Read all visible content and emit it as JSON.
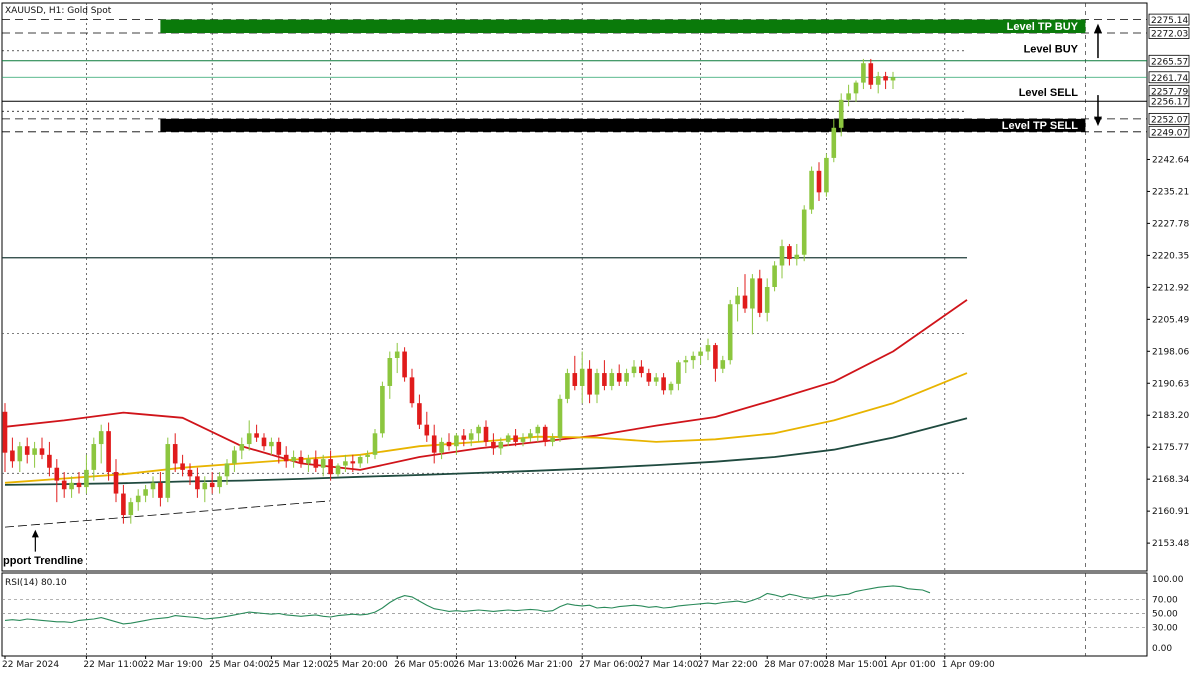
{
  "chart_data": {
    "type": "candlestick",
    "title": "XAUUSD, H1:  Gold Spot",
    "symbol": "XAUUSD",
    "timeframe": "H1",
    "instrument": "Gold Spot",
    "ylim": [
      2147.0,
      2279.0
    ],
    "price_ticks": [
      "2242.64",
      "2235.21",
      "2227.78",
      "2220.35",
      "2212.92",
      "2205.49",
      "2198.06",
      "2190.63",
      "2183.20",
      "2175.77",
      "2168.34",
      "2160.91",
      "2153.48"
    ],
    "time_ticks": [
      {
        "label": "22 Mar 2024",
        "index": 0
      },
      {
        "label": "22 Mar 11:00",
        "index": 11
      },
      {
        "label": "22 Mar 19:00",
        "index": 19
      },
      {
        "label": "25 Mar 04:00",
        "index": 28
      },
      {
        "label": "25 Mar 12:00",
        "index": 36
      },
      {
        "label": "25 Mar 20:00",
        "index": 44
      },
      {
        "label": "26 Mar 05:00",
        "index": 53
      },
      {
        "label": "26 Mar 13:00",
        "index": 61
      },
      {
        "label": "26 Mar 21:00",
        "index": 69
      },
      {
        "label": "27 Mar 06:00",
        "index": 78
      },
      {
        "label": "27 Mar 14:00",
        "index": 86
      },
      {
        "label": "27 Mar 22:00",
        "index": 94
      },
      {
        "label": "28 Mar 07:00",
        "index": 103
      },
      {
        "label": "28 Mar 15:00",
        "index": 111
      },
      {
        "label": "1 Apr 01:00",
        "index": 119
      },
      {
        "label": "1 Apr 09:00",
        "index": 127
      }
    ],
    "grid": true,
    "levels": [
      {
        "label": "Level TP BUY",
        "from": 2272.03,
        "to": 2275.14,
        "color": "#0a7a0a",
        "kind": "zone"
      },
      {
        "label": "Level BUY",
        "price": 2265.57,
        "color": "#000000",
        "kind": "line"
      },
      {
        "label": "Level SELL",
        "price": 2256.17,
        "color": "#000000",
        "kind": "line"
      },
      {
        "label": "Level TP SELL",
        "from": 2249.07,
        "to": 2252.07,
        "color": "#000000",
        "kind": "zone"
      }
    ],
    "price_labels": [
      {
        "text": "2275.14",
        "price": 2275.14,
        "bg": "#ffffff",
        "fg": "#000000"
      },
      {
        "text": "2272.03",
        "price": 2272.03,
        "bg": "#ffffff",
        "fg": "#000000"
      },
      {
        "text": "2265.57",
        "price": 2265.57,
        "bg": "#ffffff",
        "fg": "#000000"
      },
      {
        "text": "2261.74",
        "price": 2261.74,
        "bg": "#ffffff",
        "fg": "#0a8a5a"
      },
      {
        "text": "2257.79",
        "price": 2258.6,
        "bg": "#ffffff",
        "fg": "#000000"
      },
      {
        "text": "2256.17",
        "price": 2256.17,
        "bg": "#ffffff",
        "fg": "#000000"
      },
      {
        "text": "2252.07",
        "price": 2252.07,
        "bg": "#ffffff",
        "fg": "#000000"
      },
      {
        "text": "2249.07",
        "price": 2249.07,
        "bg": "#ffffff",
        "fg": "#000000"
      }
    ],
    "bid_line": 2261.74,
    "annotations": [
      {
        "text": "pport Trendline"
      }
    ],
    "trendline": {
      "x": [
        0,
        44
      ],
      "y": [
        2157.2,
        2163.3
      ]
    },
    "horizontal_lines": [
      {
        "price": 2219.8,
        "style": "solid",
        "color": "#1f3d3a"
      },
      {
        "price": 2202.2,
        "style": "dotted",
        "color": "#555555"
      },
      {
        "price": 2169.7,
        "style": "dotted",
        "color": "#555555"
      }
    ],
    "candles": [
      [
        2184.0,
        2186.0,
        2170.0,
        2174.5
      ],
      [
        2175.0,
        2178.0,
        2171.0,
        2172.5
      ],
      [
        2172.5,
        2177.0,
        2170.0,
        2176.0
      ],
      [
        2176.0,
        2178.0,
        2172.0,
        2174.0
      ],
      [
        2174.0,
        2177.0,
        2171.0,
        2175.5
      ],
      [
        2175.5,
        2178.0,
        2173.0,
        2174.0
      ],
      [
        2174.0,
        2177.0,
        2169.0,
        2171.0
      ],
      [
        2171.0,
        2173.0,
        2163.0,
        2168.0
      ],
      [
        2168.0,
        2170.0,
        2164.0,
        2166.0
      ],
      [
        2166.0,
        2169.0,
        2164.0,
        2167.5
      ],
      [
        2167.5,
        2170.0,
        2165.0,
        2166.5
      ],
      [
        2166.5,
        2174.0,
        2165.0,
        2170.5
      ],
      [
        2170.5,
        2178.0,
        2168.0,
        2176.5
      ],
      [
        2176.5,
        2181.0,
        2172.0,
        2179.5
      ],
      [
        2179.5,
        2181.5,
        2168.0,
        2170.0
      ],
      [
        2170.0,
        2173.0,
        2163.0,
        2165.0
      ],
      [
        2165.0,
        2167.0,
        2158.0,
        2160.0
      ],
      [
        2160.0,
        2164.0,
        2158.0,
        2163.0
      ],
      [
        2163.0,
        2166.0,
        2161.0,
        2164.5
      ],
      [
        2164.5,
        2167.0,
        2163.0,
        2166.0
      ],
      [
        2166.0,
        2169.0,
        2164.0,
        2167.5
      ],
      [
        2167.5,
        2170.0,
        2162.0,
        2164.0
      ],
      [
        2164.0,
        2178.0,
        2163.0,
        2176.5
      ],
      [
        2176.5,
        2179.0,
        2170.0,
        2172.0
      ],
      [
        2172.0,
        2174.0,
        2169.0,
        2170.5
      ],
      [
        2170.5,
        2172.0,
        2167.0,
        2169.0
      ],
      [
        2169.0,
        2171.0,
        2164.0,
        2166.0
      ],
      [
        2166.0,
        2169.0,
        2163.0,
        2167.5
      ],
      [
        2167.5,
        2170.0,
        2165.0,
        2166.5
      ],
      [
        2166.5,
        2170.0,
        2165.0,
        2169.0
      ],
      [
        2169.0,
        2173.0,
        2167.0,
        2172.0
      ],
      [
        2172.0,
        2176.0,
        2170.0,
        2175.0
      ],
      [
        2175.0,
        2178.0,
        2173.0,
        2176.5
      ],
      [
        2176.5,
        2182.0,
        2175.0,
        2179.0
      ],
      [
        2179.0,
        2181.0,
        2177.0,
        2178.0
      ],
      [
        2178.0,
        2179.0,
        2175.0,
        2176.0
      ],
      [
        2176.0,
        2178.0,
        2174.0,
        2177.0
      ],
      [
        2177.0,
        2178.0,
        2172.0,
        2174.0
      ],
      [
        2174.0,
        2176.0,
        2171.0,
        2172.5
      ],
      [
        2172.5,
        2175.0,
        2171.0,
        2173.5
      ],
      [
        2173.5,
        2175.0,
        2171.0,
        2172.0
      ],
      [
        2172.0,
        2174.0,
        2170.0,
        2173.0
      ],
      [
        2173.0,
        2175.0,
        2170.0,
        2171.0
      ],
      [
        2171.0,
        2174.0,
        2169.0,
        2173.0
      ],
      [
        2173.0,
        2175.0,
        2168.0,
        2169.5
      ],
      [
        2169.5,
        2172.0,
        2169.0,
        2171.5
      ],
      [
        2171.5,
        2174.0,
        2170.0,
        2172.5
      ],
      [
        2172.5,
        2174.0,
        2170.0,
        2172.0
      ],
      [
        2172.0,
        2174.0,
        2171.0,
        2173.5
      ],
      [
        2173.5,
        2175.0,
        2172.0,
        2174.0
      ],
      [
        2174.0,
        2180.0,
        2173.0,
        2179.0
      ],
      [
        2179.0,
        2191.0,
        2178.0,
        2190.0
      ],
      [
        2190.0,
        2198.0,
        2187.0,
        2196.5
      ],
      [
        2196.5,
        2200.0,
        2193.0,
        2198.0
      ],
      [
        2198.0,
        2199.0,
        2191.0,
        2192.0
      ],
      [
        2192.0,
        2194.0,
        2185.0,
        2186.0
      ],
      [
        2186.0,
        2188.0,
        2180.0,
        2181.0
      ],
      [
        2181.0,
        2184.0,
        2177.0,
        2178.5
      ],
      [
        2178.5,
        2181.0,
        2172.0,
        2174.5
      ],
      [
        2174.5,
        2178.0,
        2173.0,
        2177.0
      ],
      [
        2177.0,
        2179.0,
        2175.0,
        2176.0
      ],
      [
        2176.0,
        2179.0,
        2174.0,
        2178.5
      ],
      [
        2178.5,
        2180.0,
        2176.0,
        2177.5
      ],
      [
        2177.5,
        2180.0,
        2176.0,
        2179.0
      ],
      [
        2179.0,
        2181.0,
        2177.0,
        2180.5
      ],
      [
        2180.5,
        2182.0,
        2176.0,
        2177.0
      ],
      [
        2177.0,
        2179.0,
        2174.0,
        2175.5
      ],
      [
        2175.5,
        2178.0,
        2174.0,
        2177.0
      ],
      [
        2177.0,
        2179.0,
        2176.0,
        2178.5
      ],
      [
        2178.5,
        2180.0,
        2176.0,
        2177.0
      ],
      [
        2177.0,
        2179.0,
        2176.0,
        2178.0
      ],
      [
        2178.0,
        2180.0,
        2177.0,
        2179.0
      ],
      [
        2179.0,
        2181.0,
        2177.0,
        2180.5
      ],
      [
        2180.5,
        2181.0,
        2176.0,
        2177.0
      ],
      [
        2177.0,
        2179.0,
        2176.0,
        2178.0
      ],
      [
        2178.0,
        2188.0,
        2177.0,
        2187.0
      ],
      [
        2187.0,
        2194.0,
        2186.0,
        2193.0
      ],
      [
        2193.0,
        2197.0,
        2189.0,
        2190.0
      ],
      [
        2190.0,
        2198.0,
        2186.0,
        2194.0
      ],
      [
        2194.0,
        2196.0,
        2186.0,
        2188.0
      ],
      [
        2188.0,
        2194.0,
        2186.0,
        2193.0
      ],
      [
        2193.0,
        2196.0,
        2189.0,
        2190.0
      ],
      [
        2190.0,
        2194.0,
        2189.0,
        2193.0
      ],
      [
        2193.0,
        2195.0,
        2190.0,
        2191.0
      ],
      [
        2191.0,
        2194.0,
        2190.0,
        2193.0
      ],
      [
        2193.0,
        2196.0,
        2192.0,
        2194.5
      ],
      [
        2194.5,
        2196.0,
        2192.0,
        2193.0
      ],
      [
        2193.0,
        2194.0,
        2190.0,
        2191.0
      ],
      [
        2191.0,
        2193.0,
        2190.0,
        2192.0
      ],
      [
        2192.0,
        2193.0,
        2188.0,
        2189.0
      ],
      [
        2189.0,
        2191.0,
        2188.0,
        2190.5
      ],
      [
        2190.5,
        2196.0,
        2189.0,
        2195.5
      ],
      [
        2195.5,
        2197.0,
        2193.0,
        2196.0
      ],
      [
        2196.0,
        2198.0,
        2194.0,
        2197.0
      ],
      [
        2197.0,
        2199.0,
        2195.0,
        2198.0
      ],
      [
        2198.0,
        2201.0,
        2196.0,
        2199.5
      ],
      [
        2199.5,
        2200.0,
        2191.0,
        2194.0
      ],
      [
        2194.0,
        2197.0,
        2193.0,
        2196.0
      ],
      [
        2196.0,
        2210.0,
        2195.0,
        2209.0
      ],
      [
        2209.0,
        2213.0,
        2205.0,
        2211.0
      ],
      [
        2211.0,
        2216.0,
        2207.0,
        2208.0
      ],
      [
        2208.0,
        2216.0,
        2202.0,
        2215.0
      ],
      [
        2215.0,
        2217.0,
        2206.0,
        2207.0
      ],
      [
        2207.0,
        2215.0,
        2205.0,
        2213.0
      ],
      [
        2213.0,
        2219.0,
        2212.0,
        2218.0
      ],
      [
        2218.0,
        2224.0,
        2215.0,
        2222.5
      ],
      [
        2222.5,
        2223.0,
        2218.0,
        2219.5
      ],
      [
        2219.5,
        2223.0,
        2218.0,
        2220.5
      ],
      [
        2220.5,
        2232.0,
        2219.0,
        2231.0
      ],
      [
        2231.0,
        2241.0,
        2230.0,
        2240.0
      ],
      [
        2240.0,
        2242.0,
        2233.0,
        2235.0
      ],
      [
        2235.0,
        2244.0,
        2234.0,
        2243.0
      ],
      [
        2243.0,
        2252.0,
        2242.0,
        2250.0
      ],
      [
        2250.0,
        2258.0,
        2248.0,
        2256.5
      ],
      [
        2256.5,
        2260.0,
        2255.0,
        2258.0
      ],
      [
        2258.0,
        2261.0,
        2256.0,
        2260.5
      ],
      [
        2260.5,
        2266.0,
        2259.0,
        2265.0
      ],
      [
        2265.0,
        2266.0,
        2259.0,
        2260.0
      ],
      [
        2260.0,
        2263.0,
        2258.0,
        2262.0
      ],
      [
        2262.0,
        2263.0,
        2259.0,
        2261.0
      ],
      [
        2261.0,
        2263.0,
        2259.0,
        2261.74
      ]
    ],
    "series": [
      {
        "color": "#d0141a",
        "x": [
          0,
          8,
          16,
          24,
          32,
          40,
          48,
          56,
          64,
          72,
          80,
          88,
          96,
          104,
          112,
          120,
          130
        ],
        "y": [
          2180.5,
          2182.0,
          2183.8,
          2182.6,
          2176.0,
          2172.0,
          2170.5,
          2173.5,
          2175.5,
          2177.0,
          2178.5,
          2180.8,
          2182.8,
          2186.8,
          2191.0,
          2198.0,
          2210.0
        ]
      },
      {
        "color": "#e8b400",
        "x": [
          0,
          8,
          16,
          24,
          32,
          40,
          48,
          56,
          64,
          72,
          80,
          88,
          96,
          104,
          112,
          120,
          130
        ],
        "y": [
          2167.5,
          2168.5,
          2169.5,
          2171.0,
          2172.0,
          2173.0,
          2174.0,
          2176.0,
          2177.0,
          2178.2,
          2178.0,
          2177.0,
          2177.6,
          2179.0,
          2182.0,
          2186.0,
          2193.0
        ]
      },
      {
        "color": "#1f4a3f",
        "x": [
          0,
          8,
          16,
          24,
          32,
          40,
          48,
          56,
          64,
          72,
          80,
          88,
          96,
          104,
          112,
          120,
          130
        ],
        "y": [
          2167.0,
          2167.2,
          2167.4,
          2167.8,
          2168.0,
          2168.4,
          2168.9,
          2169.3,
          2169.8,
          2170.3,
          2170.9,
          2171.6,
          2172.4,
          2173.5,
          2175.2,
          2178.0,
          2182.5
        ]
      }
    ]
  },
  "rsi": {
    "label": "RSI(14) 80.10",
    "ylim": [
      0,
      100
    ],
    "ticks": [
      "100.00",
      "70.00",
      "50.00",
      "30.00",
      "0.00"
    ],
    "levels": [
      70,
      50,
      30
    ],
    "color": "#2a8a5a",
    "values": [
      40,
      41,
      40,
      42,
      41,
      40,
      39,
      38,
      38,
      37,
      40,
      41,
      42,
      44,
      41,
      38,
      35,
      36,
      38,
      40,
      42,
      43,
      44,
      47,
      46,
      45,
      44,
      42,
      43,
      44,
      46,
      48,
      50,
      52,
      51,
      50,
      49,
      50,
      48,
      47,
      46,
      47,
      48,
      46,
      45,
      47,
      48,
      49,
      48,
      49,
      52,
      58,
      66,
      72,
      76,
      74,
      68,
      62,
      57,
      55,
      53,
      54,
      53,
      54,
      55,
      54,
      53,
      54,
      55,
      54,
      55,
      56,
      55,
      53,
      54,
      60,
      64,
      62,
      61,
      62,
      58,
      59,
      58,
      60,
      61,
      62,
      61,
      59,
      60,
      58,
      59,
      61,
      62,
      63,
      64,
      65,
      64,
      66,
      67,
      68,
      66,
      69,
      73,
      79,
      77,
      74,
      78,
      76,
      73,
      72,
      74,
      76,
      75,
      77,
      78,
      82,
      84,
      86,
      88,
      89,
      90,
      89,
      86,
      85,
      84,
      80
    ]
  },
  "ui": {
    "level_labels": [
      "Level TP BUY",
      "Level BUY",
      "Level SELL",
      "Level TP SELL"
    ]
  }
}
